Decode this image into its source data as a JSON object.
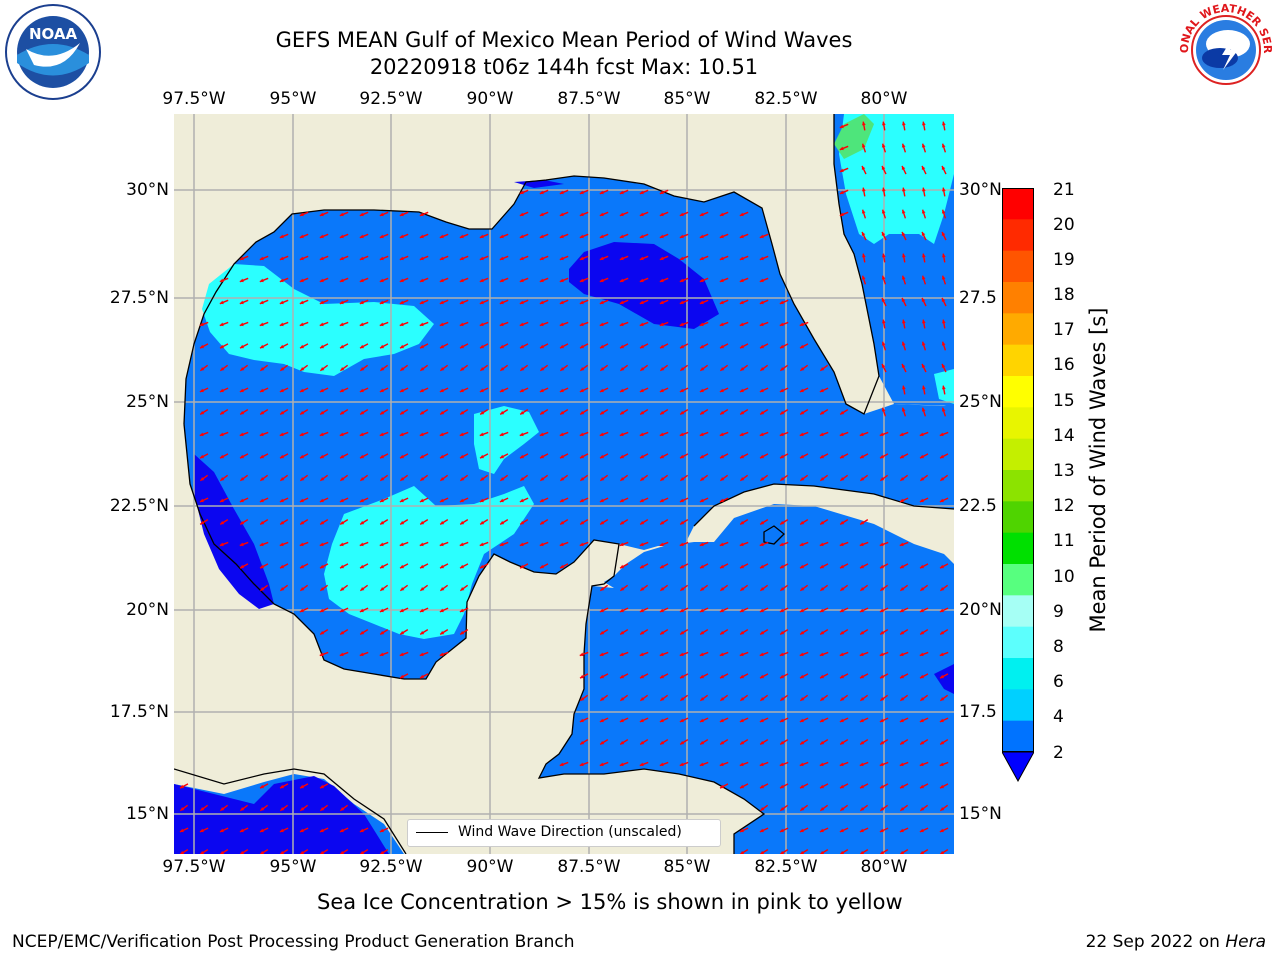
{
  "title": {
    "line1": "GEFS MEAN Gulf of Mexico Mean Period of Wind Waves",
    "line2": "20220918 t06z 144h fcst   Max: 10.51"
  },
  "logos": {
    "left": {
      "name": "noaa-logo",
      "text": "NOAA"
    },
    "right": {
      "name": "nws-logo",
      "text": "NATIONAL WEATHER SERVICE"
    }
  },
  "lon_labels": [
    "97.5°W",
    "95°W",
    "92.5°W",
    "90°W",
    "87.5°W",
    "85°W",
    "82.5°W",
    "80°W"
  ],
  "lat_labels_left": [
    "30°N",
    "27.5°N",
    "25°N",
    "22.5°N",
    "20°N",
    "17.5°N",
    "15°N"
  ],
  "lat_labels_right": [
    "30°N",
    "27.5",
    "25°N",
    "22.5",
    "20°N",
    "17.5",
    "15°N"
  ],
  "colorbar": {
    "label": "Mean Period of Wind Waves [s]",
    "ticks": [
      "21",
      "20",
      "19",
      "18",
      "17",
      "16",
      "15",
      "14",
      "13",
      "12",
      "11",
      "10",
      "9",
      "8",
      "6",
      "4",
      "2"
    ],
    "colors": [
      "#ff0000",
      "#ff2a00",
      "#ff5500",
      "#ff8000",
      "#ffaa00",
      "#ffd400",
      "#ffff00",
      "#e8f500",
      "#c4ef00",
      "#8ce300",
      "#4fd400",
      "#00e000",
      "#57ff7f",
      "#a6fff5",
      "#5cfffd",
      "#00f0f0",
      "#00d0ff",
      "#0073ff"
    ],
    "extend_color": "#0000ff"
  },
  "legend": {
    "label": "Wind Wave Direction (unscaled)"
  },
  "colors": {
    "land": "#efedd9",
    "ocean_main": "#0a78fa",
    "ocean_low": "#0b06f0",
    "ocean_mid": "#2bffff",
    "ocean_green": "#4ee57b",
    "arrow": "#ff0000",
    "grid": "#b0b0b0"
  },
  "footer": {
    "caption": "Sea Ice Concentration > 15% is shown in pink to yellow",
    "left": "NCEP/EMC/Verification Post Processing Product Generation Branch",
    "right_prefix": "22 Sep 2022 on ",
    "right_host": "Hera"
  }
}
